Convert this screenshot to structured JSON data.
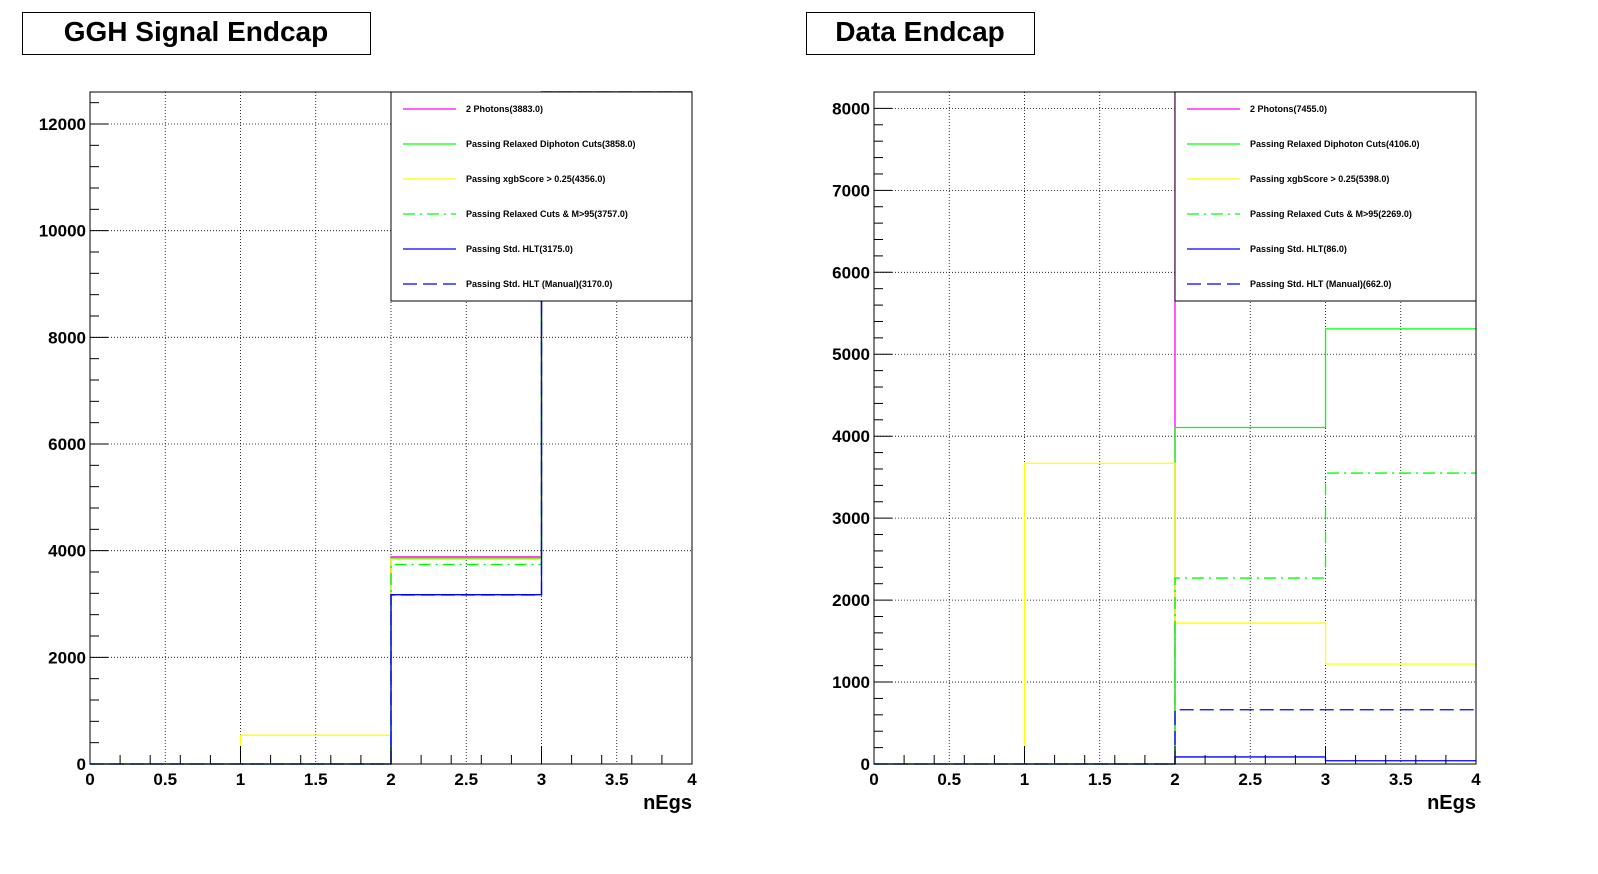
{
  "colors": {
    "magenta": "#ff00ff",
    "green": "#00ff00",
    "yellow": "#ffff00",
    "blue": "#0000ff"
  },
  "chart_data": [
    {
      "type": "line",
      "title": "GGH Signal Endcap",
      "xlabel": "nEgs",
      "ylabel": "",
      "xlim": [
        0,
        4
      ],
      "ylim": [
        0,
        12600
      ],
      "xticks": [
        0,
        0.5,
        1,
        1.5,
        2,
        2.5,
        3,
        3.5,
        4
      ],
      "xtick_labels": [
        "0",
        "0.5",
        "1",
        "1.5",
        "2",
        "2.5",
        "3",
        "3.5",
        "4"
      ],
      "yticks": [
        0,
        2000,
        4000,
        6000,
        8000,
        10000,
        12000
      ],
      "ytick_labels": [
        "0",
        "2000",
        "4000",
        "6000",
        "8000",
        "10000",
        "12000"
      ],
      "grid": true,
      "legend_position": "top-right",
      "bin_edges": [
        0,
        1,
        2,
        3,
        4
      ],
      "series": [
        {
          "name": "2 Photons(3883.0)",
          "color": "#ff00ff",
          "style": "solid",
          "values": [
            0,
            0,
            3883,
            12600
          ]
        },
        {
          "name": "Passing Relaxed Diphoton Cuts(3858.0)",
          "color": "#00ff00",
          "style": "solid",
          "values": [
            0,
            0,
            3858,
            12600
          ]
        },
        {
          "name": "Passing xgbScore > 0.25(4356.0)",
          "color": "#ffff00",
          "style": "solid",
          "values": [
            0,
            540,
            3840,
            12600
          ]
        },
        {
          "name": "Passing Relaxed Cuts & M>95(3757.0)",
          "color": "#00ff00",
          "style": "dashdot",
          "values": [
            0,
            0,
            3740,
            12600
          ]
        },
        {
          "name": "Passing Std. HLT(3175.0)",
          "color": "#0000ff",
          "style": "solid",
          "values": [
            0,
            0,
            3175,
            12600
          ]
        },
        {
          "name": "Passing Std. HLT (Manual)(3170.0)",
          "color": "#0000ff",
          "style": "dashed",
          "values": [
            0,
            0,
            3170,
            12600
          ]
        }
      ]
    },
    {
      "type": "line",
      "title": "Data Endcap",
      "xlabel": "nEgs",
      "ylabel": "",
      "xlim": [
        0,
        4
      ],
      "ylim": [
        0,
        8200
      ],
      "xticks": [
        0,
        0.5,
        1,
        1.5,
        2,
        2.5,
        3,
        3.5,
        4
      ],
      "xtick_labels": [
        "0",
        "0.5",
        "1",
        "1.5",
        "2",
        "2.5",
        "3",
        "3.5",
        "4"
      ],
      "yticks": [
        0,
        1000,
        2000,
        3000,
        4000,
        5000,
        6000,
        7000,
        8000
      ],
      "ytick_labels": [
        "0",
        "1000",
        "2000",
        "3000",
        "4000",
        "5000",
        "6000",
        "7000",
        "8000"
      ],
      "grid": true,
      "legend_position": "top-right",
      "bin_edges": [
        0,
        1,
        2,
        3,
        4
      ],
      "series": [
        {
          "name": "2 Photons(7455.0)",
          "color": "#ff00ff",
          "style": "solid",
          "values": [
            0,
            0,
            8200,
            8200
          ]
        },
        {
          "name": "Passing Relaxed Diphoton Cuts(4106.0)",
          "color": "#00ff00",
          "style": "solid",
          "values": [
            0,
            0,
            4106,
            5310
          ]
        },
        {
          "name": "Passing xgbScore > 0.25(5398.0)",
          "color": "#ffff00",
          "style": "solid",
          "values": [
            0,
            3670,
            1720,
            1220
          ]
        },
        {
          "name": "Passing Relaxed Cuts & M>95(2269.0)",
          "color": "#00ff00",
          "style": "dashdot",
          "values": [
            0,
            0,
            2269,
            3550
          ]
        },
        {
          "name": "Passing Std. HLT(86.0)",
          "color": "#0000ff",
          "style": "solid",
          "values": [
            0,
            0,
            86,
            40
          ]
        },
        {
          "name": "Passing Std. HLT (Manual)(662.0)",
          "color": "#0000ff",
          "style": "dashed",
          "values": [
            0,
            0,
            662,
            662
          ]
        }
      ]
    }
  ]
}
